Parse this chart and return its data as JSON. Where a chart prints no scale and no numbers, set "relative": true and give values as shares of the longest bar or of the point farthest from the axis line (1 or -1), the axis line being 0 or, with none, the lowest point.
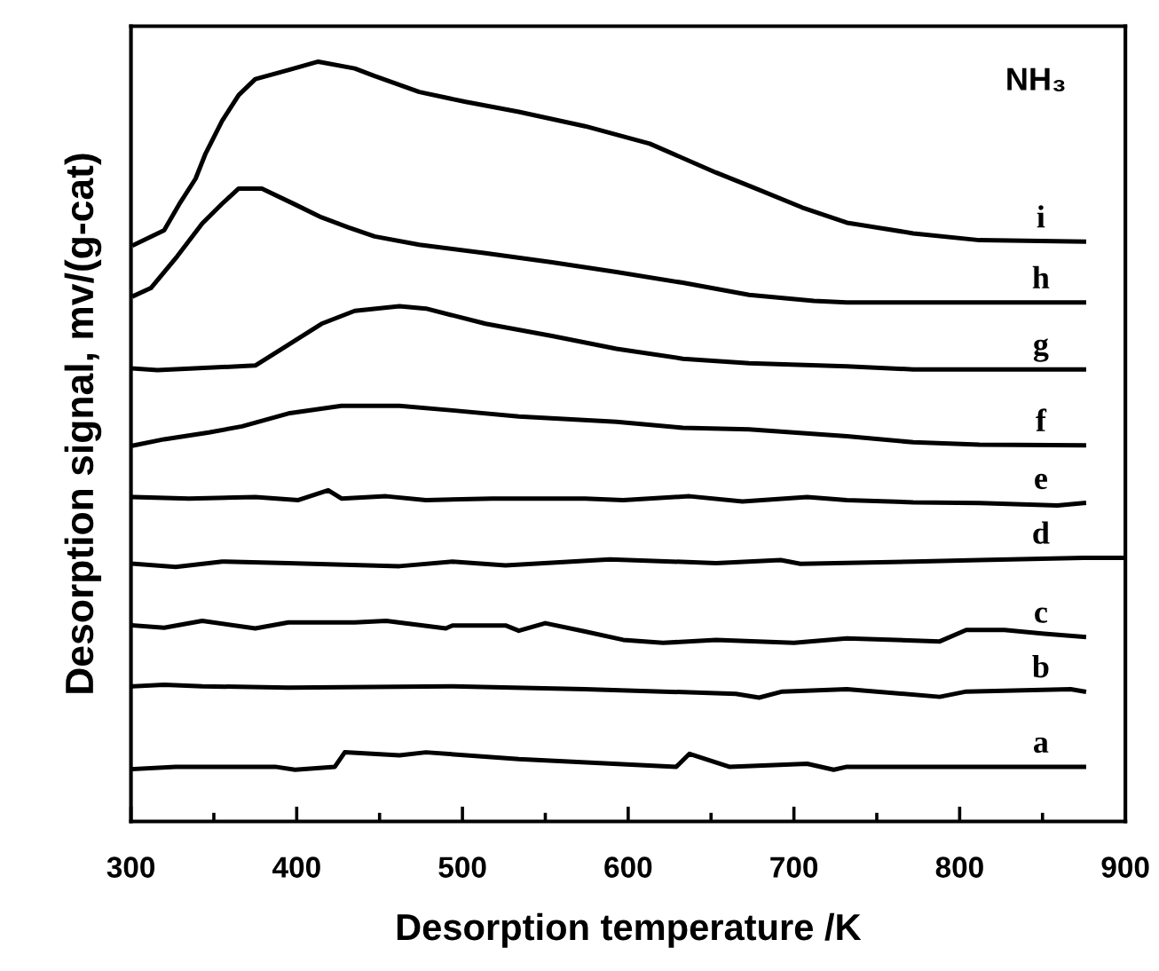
{
  "chart_data": {
    "type": "line",
    "relative": true,
    "xlabel": "Desorption temperature /K",
    "ylabel": "Desorption signal, mv/(g-cat)",
    "annotations": [
      "NH₃"
    ],
    "xlim": [
      300,
      900
    ],
    "xticks": [
      300,
      {
        "value": 350,
        "label": null
      },
      400,
      {
        "value": 450,
        "label": null
      },
      500,
      {
        "value": 550,
        "label": null
      },
      600,
      {
        "value": 650,
        "label": null
      },
      700,
      {
        "value": 750,
        "label": null
      },
      800,
      {
        "value": 850,
        "label": null
      },
      900
    ],
    "grid": false,
    "legend": false,
    "series": [
      {
        "name": "a",
        "color": "#000000",
        "x": [
          302,
          327,
          387,
          399,
          423,
          429,
          462,
          478,
          534,
          629,
          637,
          661,
          708,
          724,
          732,
          875
        ],
        "values": [
          0.069,
          0.072,
          0.072,
          0.068,
          0.072,
          0.091,
          0.087,
          0.091,
          0.082,
          0.072,
          0.089,
          0.072,
          0.076,
          0.068,
          0.072,
          0.072
        ]
      },
      {
        "name": "b",
        "color": "#000000",
        "x": [
          302,
          320,
          343,
          395,
          494,
          574,
          621,
          665,
          679,
          693,
          732,
          788,
          804,
          867,
          875
        ],
        "values": [
          0.178,
          0.18,
          0.178,
          0.176,
          0.178,
          0.174,
          0.171,
          0.168,
          0.163,
          0.171,
          0.174,
          0.164,
          0.171,
          0.174,
          0.171
        ]
      },
      {
        "name": "c",
        "color": "#000000",
        "x": [
          302,
          320,
          343,
          375,
          395,
          435,
          454,
          490,
          494,
          526,
          534,
          550,
          574,
          597,
          621,
          653,
          700,
          732,
          788,
          804,
          827,
          851,
          875
        ],
        "values": [
          0.258,
          0.255,
          0.264,
          0.254,
          0.262,
          0.262,
          0.264,
          0.254,
          0.258,
          0.258,
          0.251,
          0.261,
          0.25,
          0.239,
          0.235,
          0.239,
          0.235,
          0.241,
          0.237,
          0.252,
          0.252,
          0.247,
          0.243
        ]
      },
      {
        "name": "d",
        "color": "#000000",
        "x": [
          302,
          327,
          355,
          395,
          462,
          494,
          526,
          589,
          653,
          692,
          704,
          772,
          812,
          875,
          899
        ],
        "values": [
          0.339,
          0.335,
          0.342,
          0.34,
          0.336,
          0.342,
          0.337,
          0.345,
          0.34,
          0.344,
          0.339,
          0.342,
          0.344,
          0.347,
          0.347
        ]
      },
      {
        "name": "e",
        "color": "#000000",
        "x": [
          302,
          335,
          375,
          401,
          419,
          427,
          454,
          478,
          518,
          574,
          597,
          637,
          669,
          708,
          732,
          772,
          812,
          859,
          875
        ],
        "values": [
          0.427,
          0.425,
          0.427,
          0.423,
          0.436,
          0.425,
          0.428,
          0.423,
          0.425,
          0.425,
          0.423,
          0.428,
          0.421,
          0.427,
          0.423,
          0.42,
          0.419,
          0.416,
          0.419
        ]
      },
      {
        "name": "f",
        "color": "#000000",
        "x": [
          302,
          320,
          347,
          367,
          395,
          427,
          462,
          494,
          534,
          593,
          633,
          673,
          732,
          772,
          812,
          875
        ],
        "values": [
          0.495,
          0.503,
          0.512,
          0.52,
          0.537,
          0.547,
          0.547,
          0.541,
          0.533,
          0.526,
          0.518,
          0.516,
          0.507,
          0.499,
          0.496,
          0.495
        ]
      },
      {
        "name": "g",
        "color": "#000000",
        "x": [
          302,
          316,
          375,
          391,
          415,
          435,
          462,
          478,
          514,
          554,
          593,
          633,
          673,
          732,
          772,
          875
        ],
        "values": [
          0.596,
          0.594,
          0.6,
          0.622,
          0.655,
          0.672,
          0.678,
          0.675,
          0.655,
          0.639,
          0.622,
          0.609,
          0.603,
          0.599,
          0.595,
          0.595
        ]
      },
      {
        "name": "h",
        "color": "#000000",
        "x": [
          302,
          312,
          328,
          343,
          355,
          365,
          379,
          399,
          415,
          431,
          447,
          474,
          514,
          554,
          593,
          633,
          673,
          712,
          732,
          875
        ],
        "values": [
          0.692,
          0.702,
          0.744,
          0.787,
          0.813,
          0.833,
          0.833,
          0.812,
          0.795,
          0.782,
          0.77,
          0.759,
          0.748,
          0.736,
          0.723,
          0.709,
          0.693,
          0.685,
          0.683,
          0.683
        ]
      },
      {
        "name": "i",
        "color": "#000000",
        "x": [
          302,
          320,
          329,
          339,
          345,
          355,
          365,
          375,
          395,
          413,
          435,
          447,
          474,
          502,
          534,
          574,
          613,
          653,
          677,
          705,
          732,
          772,
          812,
          875
        ],
        "values": [
          0.759,
          0.778,
          0.812,
          0.846,
          0.879,
          0.922,
          0.956,
          0.977,
          0.989,
          1,
          0.991,
          0.981,
          0.96,
          0.947,
          0.934,
          0.915,
          0.892,
          0.854,
          0.833,
          0.808,
          0.788,
          0.774,
          0.765,
          0.763
        ]
      }
    ]
  }
}
